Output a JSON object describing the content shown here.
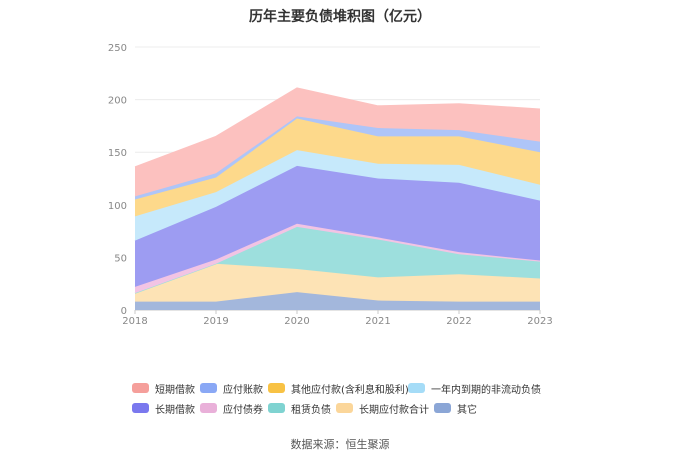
{
  "page": {
    "title": "历年主要负债堆积图（亿元）",
    "source": "数据来源：恒生聚源"
  },
  "chart_data": {
    "type": "area",
    "stacked": true,
    "x": [
      "2018",
      "2019",
      "2020",
      "2021",
      "2022",
      "2023"
    ],
    "ylim": [
      0,
      250
    ],
    "yticks": [
      "0",
      "50",
      "100",
      "150",
      "200",
      "250"
    ],
    "grid": true,
    "legend_position": "bottom",
    "series": [
      {
        "name": "其它",
        "color": "#a3b7dc",
        "values": [
          8,
          8,
          17,
          9,
          8,
          8
        ]
      },
      {
        "name": "长期应付款合计",
        "color": "#fde3b5",
        "values": [
          8,
          36,
          22,
          22,
          26,
          22
        ]
      },
      {
        "name": "租赁负债",
        "color": "#9ddfdd",
        "values": [
          0,
          0,
          40,
          36,
          19,
          16
        ]
      },
      {
        "name": "应付债券",
        "color": "#f2c4e4",
        "values": [
          6,
          4,
          3,
          2,
          2,
          1
        ]
      },
      {
        "name": "长期借款",
        "color": "#9d9cf2",
        "values": [
          44,
          50,
          55,
          56,
          66,
          57
        ]
      },
      {
        "name": "一年内到期的非流动负债",
        "color": "#c6e9fb",
        "values": [
          23,
          14,
          15,
          14,
          17,
          15
        ]
      },
      {
        "name": "其他应付款(含利息和股利)",
        "color": "#fdd98b",
        "values": [
          16,
          14,
          30,
          26,
          27,
          31
        ]
      },
      {
        "name": "应付账款",
        "color": "#aec5f8",
        "values": [
          3,
          4,
          2,
          8,
          6,
          10
        ]
      },
      {
        "name": "短期借款",
        "color": "#fcc1bf",
        "values": [
          28,
          35,
          27,
          21,
          25,
          31
        ]
      }
    ]
  },
  "legend": {
    "rows": [
      [
        {
          "label": "短期借款",
          "color": "#f59f9b"
        },
        {
          "label": "应付账款",
          "color": "#8aa8f5"
        },
        {
          "label": "其他应付款(含利息和股利)",
          "color": "#f8c244"
        },
        {
          "label": "一年内到期的非流动负债",
          "color": "#a5dcf7"
        }
      ],
      [
        {
          "label": "长期借款",
          "color": "#7a78ee"
        },
        {
          "label": "应付债券",
          "color": "#e9b0d9"
        },
        {
          "label": "租赁负债",
          "color": "#7fd3d1"
        },
        {
          "label": "长期应付款合计",
          "color": "#fbd69a"
        },
        {
          "label": "其它",
          "color": "#8ba6d6"
        }
      ]
    ]
  }
}
